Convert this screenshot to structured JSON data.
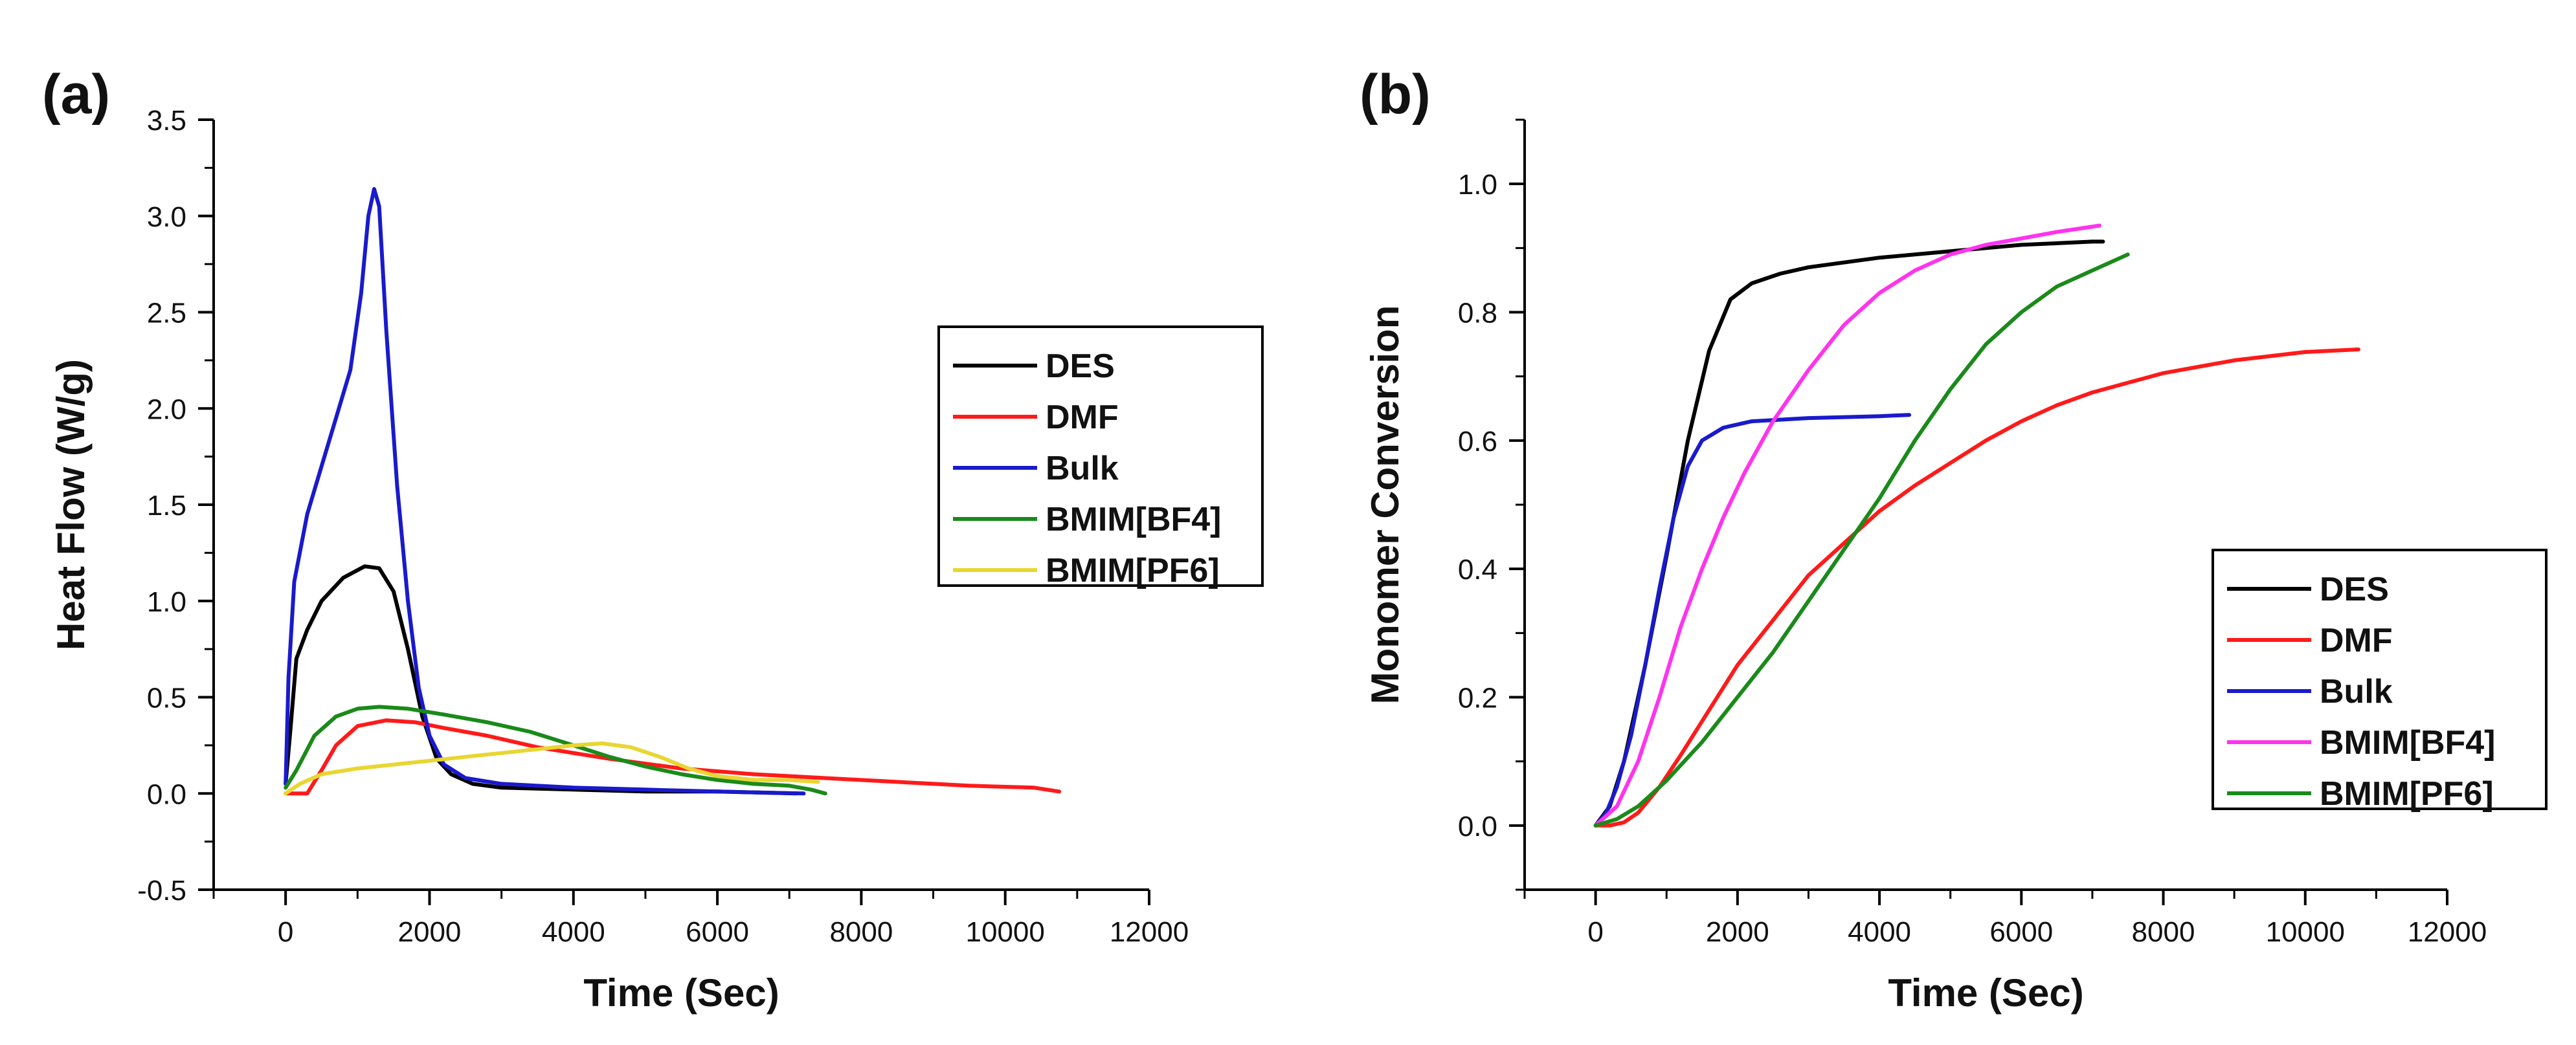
{
  "chart_data": [
    {
      "type": "line",
      "panel_label": "(a)",
      "title": "",
      "xlabel": "Time (Sec)",
      "ylabel": "Heat Flow (W/g)",
      "xlim": [
        -1000,
        12000
      ],
      "ylim": [
        -0.5,
        3.5
      ],
      "xticks": [
        0,
        2000,
        4000,
        6000,
        8000,
        10000,
        12000
      ],
      "xtick_labels": [
        "0",
        "2000",
        "4000",
        "6000",
        "8000",
        "10000",
        "12000"
      ],
      "yticks": [
        -0.5,
        0.0,
        0.5,
        1.0,
        1.5,
        2.0,
        2.5,
        3.0,
        3.5
      ],
      "ytick_labels": [
        "-0.5",
        "0.0",
        "0.5",
        "1.0",
        "1.5",
        "2.0",
        "2.5",
        "3.0",
        "3.5"
      ],
      "grid": false,
      "legend_position": "right",
      "series": [
        {
          "name": "DES",
          "color": "#000000",
          "points": [
            [
              0,
              0.05
            ],
            [
              60,
              0.3
            ],
            [
              150,
              0.7
            ],
            [
              300,
              0.85
            ],
            [
              500,
              1.0
            ],
            [
              800,
              1.12
            ],
            [
              1100,
              1.18
            ],
            [
              1300,
              1.17
            ],
            [
              1500,
              1.05
            ],
            [
              1700,
              0.75
            ],
            [
              1900,
              0.4
            ],
            [
              2100,
              0.18
            ],
            [
              2300,
              0.1
            ],
            [
              2600,
              0.05
            ],
            [
              3000,
              0.03
            ],
            [
              4000,
              0.02
            ],
            [
              5000,
              0.01
            ],
            [
              6000,
              0.01
            ],
            [
              7100,
              0.0
            ]
          ]
        },
        {
          "name": "DMF",
          "color": "#ff1a1a",
          "points": [
            [
              0,
              0.0
            ],
            [
              300,
              0.0
            ],
            [
              500,
              0.12
            ],
            [
              700,
              0.25
            ],
            [
              1000,
              0.35
            ],
            [
              1400,
              0.38
            ],
            [
              1800,
              0.37
            ],
            [
              2200,
              0.34
            ],
            [
              2800,
              0.3
            ],
            [
              3500,
              0.24
            ],
            [
              4500,
              0.18
            ],
            [
              5500,
              0.13
            ],
            [
              6500,
              0.1
            ],
            [
              7500,
              0.08
            ],
            [
              8500,
              0.06
            ],
            [
              9500,
              0.04
            ],
            [
              10400,
              0.03
            ],
            [
              10750,
              0.01
            ]
          ]
        },
        {
          "name": "Bulk",
          "color": "#1a1acc",
          "points": [
            [
              0,
              0.05
            ],
            [
              40,
              0.6
            ],
            [
              120,
              1.1
            ],
            [
              300,
              1.45
            ],
            [
              500,
              1.7
            ],
            [
              700,
              1.95
            ],
            [
              900,
              2.2
            ],
            [
              1050,
              2.6
            ],
            [
              1150,
              3.0
            ],
            [
              1230,
              3.14
            ],
            [
              1300,
              3.05
            ],
            [
              1400,
              2.4
            ],
            [
              1550,
              1.6
            ],
            [
              1700,
              1.0
            ],
            [
              1850,
              0.55
            ],
            [
              2000,
              0.3
            ],
            [
              2200,
              0.15
            ],
            [
              2500,
              0.08
            ],
            [
              3000,
              0.05
            ],
            [
              4000,
              0.03
            ],
            [
              5000,
              0.02
            ],
            [
              6000,
              0.01
            ],
            [
              7200,
              0.0
            ]
          ]
        },
        {
          "name": "BMIM[BF4]",
          "color": "#1a8a1a",
          "points": [
            [
              0,
              0.03
            ],
            [
              150,
              0.12
            ],
            [
              400,
              0.3
            ],
            [
              700,
              0.4
            ],
            [
              1000,
              0.44
            ],
            [
              1300,
              0.45
            ],
            [
              1700,
              0.44
            ],
            [
              2200,
              0.41
            ],
            [
              2800,
              0.37
            ],
            [
              3400,
              0.32
            ],
            [
              4000,
              0.25
            ],
            [
              4500,
              0.19
            ],
            [
              5000,
              0.14
            ],
            [
              5500,
              0.1
            ],
            [
              6000,
              0.07
            ],
            [
              6500,
              0.05
            ],
            [
              7000,
              0.04
            ],
            [
              7300,
              0.02
            ],
            [
              7500,
              0.0
            ]
          ]
        },
        {
          "name": "BMIM[PF6]",
          "color": "#e8d632",
          "points": [
            [
              0,
              0.0
            ],
            [
              200,
              0.05
            ],
            [
              500,
              0.1
            ],
            [
              1000,
              0.13
            ],
            [
              1500,
              0.15
            ],
            [
              2000,
              0.17
            ],
            [
              2500,
              0.19
            ],
            [
              3000,
              0.21
            ],
            [
              3500,
              0.23
            ],
            [
              4000,
              0.25
            ],
            [
              4400,
              0.26
            ],
            [
              4800,
              0.24
            ],
            [
              5200,
              0.19
            ],
            [
              5600,
              0.13
            ],
            [
              6000,
              0.09
            ],
            [
              6500,
              0.07
            ],
            [
              7000,
              0.07
            ],
            [
              7400,
              0.06
            ]
          ]
        }
      ]
    },
    {
      "type": "line",
      "panel_label": "(b)",
      "title": "",
      "xlabel": "Time (Sec)",
      "ylabel": "Monomer Conversion",
      "xlim": [
        -1000,
        12000
      ],
      "ylim": [
        -0.1,
        1.1
      ],
      "xticks": [
        0,
        2000,
        4000,
        6000,
        8000,
        10000,
        12000
      ],
      "xtick_labels": [
        "0",
        "2000",
        "4000",
        "6000",
        "8000",
        "10000",
        "12000"
      ],
      "yticks": [
        0.0,
        0.2,
        0.4,
        0.6,
        0.8,
        1.0
      ],
      "ytick_labels": [
        "0.0",
        "0.2",
        "0.4",
        "0.6",
        "0.8",
        "1.0"
      ],
      "grid": false,
      "legend_position": "bottom-right",
      "series": [
        {
          "name": "DES",
          "color": "#000000",
          "points": [
            [
              0,
              0.0
            ],
            [
              200,
              0.03
            ],
            [
              400,
              0.1
            ],
            [
              700,
              0.25
            ],
            [
              1000,
              0.42
            ],
            [
              1300,
              0.6
            ],
            [
              1600,
              0.74
            ],
            [
              1900,
              0.82
            ],
            [
              2200,
              0.845
            ],
            [
              2600,
              0.86
            ],
            [
              3000,
              0.87
            ],
            [
              4000,
              0.885
            ],
            [
              5000,
              0.895
            ],
            [
              6000,
              0.905
            ],
            [
              7000,
              0.91
            ],
            [
              7150,
              0.91
            ]
          ]
        },
        {
          "name": "DMF",
          "color": "#ff1a1a",
          "points": [
            [
              0,
              0.0
            ],
            [
              200,
              0.0
            ],
            [
              400,
              0.005
            ],
            [
              600,
              0.02
            ],
            [
              900,
              0.06
            ],
            [
              1200,
              0.11
            ],
            [
              1600,
              0.18
            ],
            [
              2000,
              0.25
            ],
            [
              2500,
              0.32
            ],
            [
              3000,
              0.39
            ],
            [
              3500,
              0.44
            ],
            [
              4000,
              0.49
            ],
            [
              4500,
              0.53
            ],
            [
              5000,
              0.565
            ],
            [
              5500,
              0.6
            ],
            [
              6000,
              0.63
            ],
            [
              6500,
              0.655
            ],
            [
              7000,
              0.675
            ],
            [
              8000,
              0.705
            ],
            [
              9000,
              0.725
            ],
            [
              10000,
              0.738
            ],
            [
              10750,
              0.742
            ]
          ]
        },
        {
          "name": "Bulk",
          "color": "#1a1acc",
          "points": [
            [
              0,
              0.0
            ],
            [
              150,
              0.02
            ],
            [
              300,
              0.06
            ],
            [
              500,
              0.14
            ],
            [
              700,
              0.25
            ],
            [
              900,
              0.37
            ],
            [
              1100,
              0.48
            ],
            [
              1300,
              0.56
            ],
            [
              1500,
              0.6
            ],
            [
              1800,
              0.62
            ],
            [
              2200,
              0.63
            ],
            [
              3000,
              0.635
            ],
            [
              4000,
              0.638
            ],
            [
              4420,
              0.64
            ]
          ]
        },
        {
          "name": "BMIM[BF4]",
          "color": "#ff33ee",
          "points": [
            [
              0,
              0.0
            ],
            [
              300,
              0.03
            ],
            [
              600,
              0.1
            ],
            [
              900,
              0.2
            ],
            [
              1200,
              0.31
            ],
            [
              1500,
              0.4
            ],
            [
              1800,
              0.48
            ],
            [
              2100,
              0.55
            ],
            [
              2500,
              0.63
            ],
            [
              3000,
              0.71
            ],
            [
              3500,
              0.78
            ],
            [
              4000,
              0.83
            ],
            [
              4500,
              0.865
            ],
            [
              5000,
              0.89
            ],
            [
              5500,
              0.905
            ],
            [
              6000,
              0.915
            ],
            [
              6500,
              0.925
            ],
            [
              7100,
              0.935
            ]
          ]
        },
        {
          "name": "BMIM[PF6]",
          "color": "#1a8a1a",
          "points": [
            [
              0,
              0.0
            ],
            [
              300,
              0.01
            ],
            [
              600,
              0.03
            ],
            [
              1000,
              0.07
            ],
            [
              1500,
              0.13
            ],
            [
              2000,
              0.2
            ],
            [
              2500,
              0.27
            ],
            [
              3000,
              0.35
            ],
            [
              3500,
              0.43
            ],
            [
              4000,
              0.51
            ],
            [
              4500,
              0.6
            ],
            [
              5000,
              0.68
            ],
            [
              5500,
              0.75
            ],
            [
              6000,
              0.8
            ],
            [
              6500,
              0.84
            ],
            [
              7000,
              0.865
            ],
            [
              7500,
              0.89
            ]
          ]
        }
      ]
    }
  ]
}
